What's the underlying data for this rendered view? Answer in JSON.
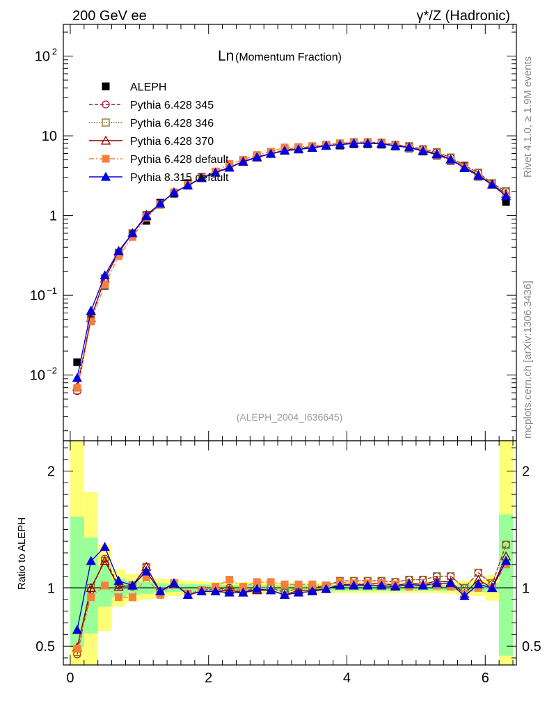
{
  "header": {
    "left": "200 GeV ee",
    "right": "γ*/Z (Hadronic)"
  },
  "side_labels": {
    "rivet": "Rivet 4.1.0, ≥ 1.9M events",
    "source": "mcplots.cern.ch [arXiv:1306.3436]"
  },
  "chart_data": [
    {
      "type": "line",
      "title": "Ln(Momentum Fraction)",
      "title_main": "Ln",
      "title_sub": "(Momentum Fraction)",
      "watermark": "(ALEPH_2004_I636645)",
      "xlabel": "",
      "ylabel": "",
      "yscale": "log",
      "xlim": [
        -0.1,
        6.45
      ],
      "ylim": [
        0.0015,
        250
      ],
      "y_ticks": [
        {
          "value": 0.01,
          "label": "10",
          "exp": "−2"
        },
        {
          "value": 0.1,
          "label": "10",
          "exp": "−1"
        },
        {
          "value": 1,
          "label": "1",
          "exp": ""
        },
        {
          "value": 10,
          "label": "10",
          "exp": ""
        },
        {
          "value": 100,
          "label": "10",
          "exp": "2"
        }
      ],
      "legend_position": "top-left",
      "x": [
        0.1,
        0.3,
        0.5,
        0.7,
        0.9,
        1.1,
        1.3,
        1.5,
        1.7,
        1.9,
        2.1,
        2.3,
        2.5,
        2.7,
        2.9,
        3.1,
        3.3,
        3.5,
        3.7,
        3.9,
        4.1,
        4.3,
        4.5,
        4.7,
        4.9,
        5.1,
        5.3,
        5.5,
        5.7,
        5.9,
        6.1,
        6.3
      ],
      "series": [
        {
          "name": "ALEPH",
          "color": "#000000",
          "marker": "square",
          "line": "none",
          "values": [
            0.0145,
            0.052,
            0.132,
            0.34,
            0.59,
            0.86,
            1.45,
            1.88,
            2.55,
            3.05,
            3.55,
            4.15,
            4.95,
            5.45,
            6.05,
            6.95,
            7.05,
            7.25,
            7.55,
            7.55,
            7.85,
            7.85,
            7.75,
            7.35,
            6.95,
            6.35,
            5.65,
            4.85,
            4.25,
            3.05,
            2.45,
            1.48
          ]
        },
        {
          "name": "Pythia 6.428 345",
          "color": "#b2182b",
          "marker": "open-circle",
          "line": "dashed",
          "values": [
            0.0063,
            0.051,
            0.165,
            0.345,
            0.6,
            1.02,
            1.4,
            1.95,
            2.42,
            2.98,
            3.52,
            4.05,
            4.78,
            5.45,
            6.02,
            6.65,
            7.05,
            7.25,
            7.75,
            8.02,
            8.32,
            8.32,
            8.22,
            7.72,
            7.42,
            6.82,
            6.25,
            5.35,
            4.25,
            3.45,
            2.52,
            2.02
          ]
        },
        {
          "name": "Pythia 6.428 346",
          "color": "#8c6d1f",
          "marker": "open-square",
          "line": "dotted",
          "values": [
            0.0065,
            0.052,
            0.163,
            0.343,
            0.6,
            1.02,
            1.4,
            1.95,
            2.42,
            2.98,
            3.52,
            4.05,
            4.78,
            5.45,
            6.02,
            6.65,
            7.05,
            7.25,
            7.75,
            8.02,
            8.32,
            8.32,
            8.22,
            7.72,
            7.42,
            6.82,
            6.25,
            5.35,
            4.25,
            3.45,
            2.55,
            2.02
          ]
        },
        {
          "name": "Pythia 6.428 370",
          "color": "#8b0000",
          "marker": "open-triangle",
          "line": "solid",
          "values": [
            0.0071,
            0.052,
            0.162,
            0.345,
            0.6,
            1.02,
            1.4,
            1.95,
            2.38,
            2.95,
            3.45,
            4.0,
            4.72,
            5.35,
            5.95,
            6.55,
            6.9,
            7.1,
            7.5,
            7.8,
            8.1,
            8.1,
            8.05,
            7.5,
            7.2,
            6.55,
            6.0,
            5.1,
            4.05,
            3.25,
            2.45,
            1.88
          ]
        },
        {
          "name": "Pythia 6.428 default",
          "color": "#f5803e",
          "marker": "filled-square",
          "line": "dashdot",
          "values": [
            0.0069,
            0.047,
            0.135,
            0.31,
            0.54,
            0.94,
            1.36,
            1.95,
            2.42,
            3.0,
            3.58,
            4.45,
            5.0,
            5.75,
            6.35,
            7.15,
            7.25,
            7.45,
            7.7,
            7.95,
            8.15,
            8.2,
            8.05,
            7.55,
            7.05,
            6.45,
            5.75,
            4.92,
            4.05,
            3.05,
            2.45,
            1.78
          ]
        },
        {
          "name": "Pythia 8.315 default",
          "color": "#0000dd",
          "marker": "filled-triangle",
          "line": "solid",
          "values": [
            0.0092,
            0.064,
            0.178,
            0.36,
            0.6,
            0.98,
            1.41,
            1.95,
            2.38,
            2.95,
            3.45,
            3.98,
            4.75,
            5.4,
            5.95,
            6.5,
            6.75,
            7.05,
            7.5,
            7.75,
            8.05,
            8.05,
            7.95,
            7.45,
            7.15,
            6.45,
            5.85,
            5.05,
            3.95,
            3.15,
            2.45,
            1.75
          ]
        }
      ]
    },
    {
      "type": "line",
      "title": "",
      "ylabel": "Ratio to ALEPH",
      "xlabel": "",
      "yscale": "linear",
      "xlim": [
        -0.1,
        6.45
      ],
      "ylim": [
        0.34,
        2.26
      ],
      "y_ticks": [
        0.5,
        1,
        2
      ],
      "x_ticks": [
        0,
        2,
        4,
        6
      ],
      "reference_line": 1,
      "uncertainty_bands": {
        "x_edges": [
          0.0,
          0.2,
          0.4,
          0.6,
          0.8,
          1.0,
          1.2,
          1.4,
          1.6,
          1.8,
          2.0,
          2.2,
          2.4,
          2.6,
          2.8,
          3.0,
          3.2,
          3.4,
          3.6,
          3.8,
          4.0,
          4.2,
          4.4,
          4.6,
          4.8,
          5.0,
          5.2,
          5.4,
          5.6,
          5.8,
          6.0,
          6.2,
          6.4
        ],
        "inner": {
          "color": "#99ff99",
          "lo": [
            0.49,
            0.61,
            0.84,
            0.92,
            0.94,
            0.95,
            0.96,
            0.965,
            0.97,
            0.97,
            0.975,
            0.975,
            0.975,
            0.975,
            0.975,
            0.975,
            0.975,
            0.975,
            0.975,
            0.975,
            0.975,
            0.975,
            0.975,
            0.975,
            0.975,
            0.975,
            0.975,
            0.975,
            0.97,
            0.965,
            0.96,
            0.42
          ],
          "hi": [
            1.61,
            1.43,
            1.19,
            1.08,
            1.06,
            1.05,
            1.04,
            1.035,
            1.03,
            1.03,
            1.025,
            1.025,
            1.025,
            1.025,
            1.025,
            1.025,
            1.025,
            1.025,
            1.025,
            1.025,
            1.025,
            1.025,
            1.025,
            1.025,
            1.025,
            1.025,
            1.025,
            1.025,
            1.03,
            1.035,
            1.04,
            1.63
          ]
        },
        "outer": {
          "color": "#ffff77",
          "lo": [
            0.34,
            0.34,
            0.63,
            0.84,
            0.88,
            0.9,
            0.92,
            0.93,
            0.94,
            0.945,
            0.95,
            0.95,
            0.95,
            0.95,
            0.95,
            0.955,
            0.955,
            0.955,
            0.955,
            0.955,
            0.955,
            0.955,
            0.955,
            0.955,
            0.955,
            0.955,
            0.955,
            0.95,
            0.94,
            0.93,
            0.89,
            0.34
          ],
          "hi": [
            2.26,
            1.82,
            1.37,
            1.16,
            1.12,
            1.1,
            1.08,
            1.07,
            1.06,
            1.055,
            1.05,
            1.05,
            1.05,
            1.05,
            1.05,
            1.045,
            1.045,
            1.045,
            1.045,
            1.045,
            1.045,
            1.045,
            1.045,
            1.045,
            1.045,
            1.045,
            1.045,
            1.05,
            1.06,
            1.07,
            1.11,
            2.26
          ]
        }
      },
      "x": [
        0.1,
        0.3,
        0.5,
        0.7,
        0.9,
        1.1,
        1.3,
        1.5,
        1.7,
        1.9,
        2.1,
        2.3,
        2.5,
        2.7,
        2.9,
        3.1,
        3.3,
        3.5,
        3.7,
        3.9,
        4.1,
        4.3,
        4.5,
        4.7,
        4.9,
        5.1,
        5.3,
        5.5,
        5.7,
        5.9,
        6.1,
        6.3
      ],
      "series": [
        {
          "name": "Pythia 6.428 345",
          "color": "#b2182b",
          "marker": "open-circle",
          "line": "dashed",
          "values": [
            0.43,
            0.98,
            1.25,
            1.02,
            1.01,
            1.18,
            0.97,
            1.03,
            0.95,
            0.98,
            0.99,
            1.0,
            0.97,
            1.0,
            1.0,
            0.96,
            1.0,
            1.0,
            1.02,
            1.06,
            1.06,
            1.06,
            1.06,
            1.05,
            1.07,
            1.07,
            1.1,
            1.1,
            1.0,
            1.13,
            1.03,
            1.37
          ]
        },
        {
          "name": "Pythia 6.428 346",
          "color": "#8c6d1f",
          "marker": "open-square",
          "line": "dotted",
          "values": [
            0.45,
            1.0,
            1.23,
            1.01,
            1.02,
            1.18,
            0.97,
            1.04,
            0.95,
            0.98,
            0.99,
            0.98,
            0.97,
            1.0,
            1.0,
            0.96,
            1.0,
            1.0,
            1.02,
            1.06,
            1.06,
            1.06,
            1.06,
            1.05,
            1.07,
            1.07,
            1.1,
            1.1,
            1.0,
            1.13,
            1.04,
            1.37
          ]
        },
        {
          "name": "Pythia 6.428 370",
          "color": "#8b0000",
          "marker": "open-triangle",
          "line": "solid",
          "values": [
            0.49,
            1.0,
            1.23,
            1.01,
            1.02,
            1.18,
            0.97,
            1.04,
            0.94,
            0.97,
            0.97,
            0.98,
            0.96,
            0.98,
            0.98,
            0.94,
            0.98,
            0.98,
            0.99,
            1.03,
            1.03,
            1.03,
            1.04,
            1.02,
            1.04,
            1.03,
            1.06,
            1.05,
            0.95,
            1.07,
            1.0,
            1.27
          ]
        },
        {
          "name": "Pythia 6.428 default",
          "color": "#f5803e",
          "marker": "filled-square",
          "line": "dashdot",
          "values": [
            0.48,
            0.92,
            1.02,
            0.92,
            0.92,
            1.09,
            0.94,
            1.04,
            0.95,
            0.98,
            1.01,
            1.07,
            1.01,
            1.05,
            1.05,
            1.03,
            1.03,
            1.03,
            1.02,
            1.05,
            1.04,
            1.04,
            1.04,
            1.03,
            1.01,
            1.02,
            1.02,
            1.01,
            0.95,
            1.0,
            1.0,
            1.2
          ]
        },
        {
          "name": "Pythia 8.315 default",
          "color": "#0000dd",
          "marker": "filled-triangle",
          "line": "solid",
          "values": [
            0.64,
            1.23,
            1.35,
            1.06,
            1.02,
            1.14,
            0.97,
            1.04,
            0.94,
            0.97,
            0.97,
            0.96,
            0.96,
            0.99,
            0.98,
            0.94,
            0.96,
            0.97,
            0.99,
            1.02,
            1.02,
            1.02,
            1.02,
            1.01,
            1.03,
            1.02,
            1.04,
            1.04,
            0.93,
            1.03,
            1.0,
            1.23
          ]
        }
      ]
    }
  ]
}
